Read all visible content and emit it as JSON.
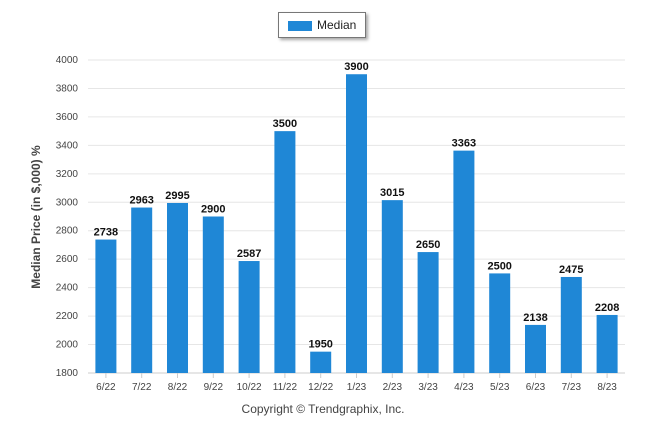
{
  "legend": {
    "label": "Median"
  },
  "credit": "Copyright © Trendgraphix, Inc.",
  "colors": {
    "bar": "#1f87d6",
    "grid": "#e6e6e6",
    "axis": "#cccccc"
  },
  "chart_data": {
    "type": "bar",
    "categories": [
      "6/22",
      "7/22",
      "8/22",
      "9/22",
      "10/22",
      "11/22",
      "12/22",
      "1/23",
      "2/23",
      "3/23",
      "4/23",
      "5/23",
      "6/23",
      "7/23",
      "8/23"
    ],
    "series": [
      {
        "name": "Median",
        "values": [
          2738,
          2963,
          2995,
          2900,
          2587,
          3500,
          1950,
          3900,
          3015,
          2650,
          3363,
          2500,
          2138,
          2475,
          2208
        ]
      }
    ],
    "ylabel": "Median Price (in $,000) %",
    "xlabel": "",
    "ylim": [
      1800,
      4000
    ],
    "yticks": [
      1800,
      2000,
      2200,
      2400,
      2600,
      2800,
      3000,
      3200,
      3400,
      3600,
      3800,
      4000
    ],
    "grid": true,
    "legend_position": "top-center",
    "data_labels": true
  }
}
